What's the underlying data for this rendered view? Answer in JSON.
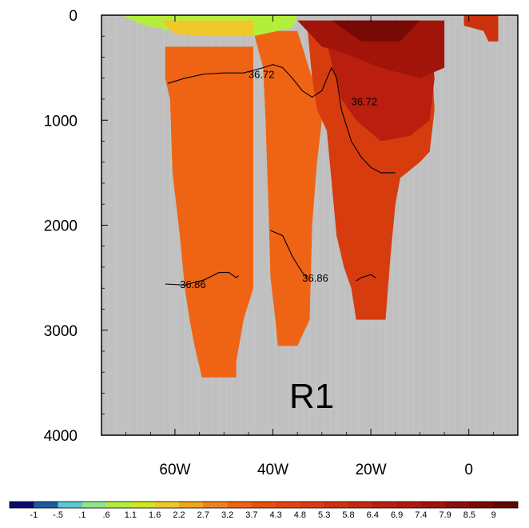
{
  "chart_data": {
    "type": "heatmap",
    "panel_label": "R1",
    "x_axis": {
      "range": [
        -75,
        10
      ],
      "ticks": [
        {
          "value": -60,
          "label": "60W"
        },
        {
          "value": -40,
          "label": "40W"
        },
        {
          "value": -20,
          "label": "20W"
        },
        {
          "value": 0,
          "label": "0"
        }
      ]
    },
    "y_axis": {
      "range": [
        0,
        4000
      ],
      "inverted": true,
      "ticks": [
        {
          "value": 0,
          "label": "0"
        },
        {
          "value": 1000,
          "label": "1000"
        },
        {
          "value": 2000,
          "label": "2000"
        },
        {
          "value": 3000,
          "label": "3000"
        },
        {
          "value": 4000,
          "label": "4000"
        }
      ]
    },
    "missing_color": "#c0c0c0",
    "colorbar": {
      "labels": [
        "-1",
        "-.5",
        ".1",
        ".6",
        "1.1",
        "1.6",
        "2.2",
        "2.7",
        "3.2",
        "3.7",
        "4.3",
        "4.8",
        "5.3",
        "5.8",
        "6.4",
        "6.9",
        "7.4",
        "7.9",
        "8.5",
        "9"
      ],
      "colors": [
        "#0a0a6e",
        "#1e5aa0",
        "#5ac8d2",
        "#8ce68c",
        "#b4ee3c",
        "#d2e61e",
        "#f0c828",
        "#f0a51e",
        "#f0821e",
        "#ee6414",
        "#e6500f",
        "#e1460f",
        "#d73c0f",
        "#cd320f",
        "#c3280f",
        "#b91e0f",
        "#af190d",
        "#a0140a",
        "#8c0f08",
        "#780a05",
        "#640505"
      ]
    },
    "filled_regions": [
      {
        "value": 3.5,
        "polygon": [
          [
            -62,
            0.3
          ],
          [
            -44,
            0.3
          ],
          [
            -44,
            2.6
          ],
          [
            -46,
            2.9
          ],
          [
            -47.5,
            3.3
          ],
          [
            -47.5,
            3.45
          ],
          [
            -54.5,
            3.45
          ],
          [
            -56,
            3.15
          ],
          [
            -57,
            2.9
          ],
          [
            -58,
            2.6
          ],
          [
            -59,
            2.1
          ],
          [
            -60.5,
            1.5
          ],
          [
            -61,
            0.8
          ],
          [
            -62,
            0.6
          ]
        ]
      },
      {
        "value": 3.6,
        "polygon": [
          [
            -44,
            0.15
          ],
          [
            -35,
            0.15
          ],
          [
            -32,
            0.6
          ],
          [
            -30,
            1.0
          ],
          [
            -31,
            1.4
          ],
          [
            -32,
            2.0
          ],
          [
            -32.5,
            2.9
          ],
          [
            -35,
            3.15
          ],
          [
            -39,
            3.15
          ],
          [
            -39.5,
            2.9
          ],
          [
            -40.5,
            2.5
          ],
          [
            -41,
            1.7
          ],
          [
            -41.5,
            1.0
          ],
          [
            -42,
            0.5
          ]
        ]
      },
      {
        "value": 4.8,
        "polygon": [
          [
            -33,
            0.1
          ],
          [
            -8,
            0.1
          ],
          [
            -7,
            0.9
          ],
          [
            -8,
            1.3
          ],
          [
            -10,
            1.4
          ],
          [
            -14,
            1.55
          ],
          [
            -15,
            1.8
          ],
          [
            -16,
            2.3
          ],
          [
            -17,
            2.9
          ],
          [
            -23,
            2.9
          ],
          [
            -24,
            2.6
          ],
          [
            -25.5,
            2.4
          ],
          [
            -27,
            2.1
          ],
          [
            -28,
            1.6
          ],
          [
            -29,
            1.1
          ],
          [
            -31,
            0.9
          ],
          [
            -32,
            0.6
          ]
        ]
      },
      {
        "value": 6.5,
        "polygon": [
          [
            -30,
            0.1
          ],
          [
            -8,
            0.1
          ],
          [
            -7,
            0.6
          ],
          [
            -8,
            1.0
          ],
          [
            -12,
            1.15
          ],
          [
            -18,
            1.2
          ],
          [
            -23,
            1.0
          ],
          [
            -26,
            0.8
          ]
        ]
      },
      {
        "value": 7.5,
        "polygon": [
          [
            -35,
            0.05
          ],
          [
            -5,
            0.05
          ],
          [
            -5,
            0.5
          ],
          [
            -10,
            0.6
          ],
          [
            -18,
            0.5
          ],
          [
            -26,
            0.35
          ],
          [
            -30,
            0.3
          ]
        ]
      },
      {
        "value": 8.5,
        "polygon": [
          [
            -28,
            0.05
          ],
          [
            -10,
            0.05
          ],
          [
            -14,
            0.25
          ],
          [
            -22,
            0.25
          ]
        ]
      },
      {
        "value": 5.5,
        "polygon": [
          [
            -1,
            0.0
          ],
          [
            6,
            0.0
          ],
          [
            6,
            0.25
          ],
          [
            4,
            0.25
          ],
          [
            3,
            0.15
          ],
          [
            -1,
            0.1
          ]
        ]
      },
      {
        "value": 0.6,
        "polygon": [
          [
            -71,
            0.0
          ],
          [
            -35,
            0.0
          ],
          [
            -36,
            0.12
          ],
          [
            -44,
            0.2
          ],
          [
            -52,
            0.18
          ],
          [
            -60,
            0.15
          ],
          [
            -66,
            0.1
          ]
        ]
      },
      {
        "value": 1.6,
        "polygon": [
          [
            -63,
            0.05
          ],
          [
            -44,
            0.05
          ],
          [
            -44,
            0.2
          ],
          [
            -52,
            0.2
          ],
          [
            -60,
            0.18
          ]
        ]
      }
    ],
    "contours": [
      {
        "level": "36.72",
        "points": [
          [
            -61.5,
            0.65
          ],
          [
            -58,
            0.6
          ],
          [
            -54,
            0.56
          ],
          [
            -50,
            0.55
          ],
          [
            -46,
            0.55
          ],
          [
            -42,
            0.5
          ],
          [
            -40,
            0.47
          ],
          [
            -38,
            0.5
          ],
          [
            -36,
            0.6
          ],
          [
            -34,
            0.72
          ],
          [
            -32,
            0.78
          ],
          [
            -30,
            0.72
          ],
          [
            -28.5,
            0.55
          ],
          [
            -28,
            0.5
          ],
          [
            -27,
            0.6
          ],
          [
            -26,
            0.9
          ],
          [
            -24,
            1.2
          ],
          [
            -22,
            1.35
          ],
          [
            -20,
            1.45
          ],
          [
            -18,
            1.5
          ],
          [
            -15,
            1.5
          ]
        ],
        "label_at": [
          -45,
          0.56
        ]
      },
      {
        "level": "36.72",
        "points": [],
        "label_at": [
          -24,
          0.82
        ]
      },
      {
        "level": "36.86",
        "points": [
          [
            -62,
            2.56
          ],
          [
            -58,
            2.57
          ],
          [
            -54,
            2.52
          ],
          [
            -51,
            2.45
          ],
          [
            -49,
            2.45
          ],
          [
            -47.5,
            2.5
          ],
          [
            -47,
            2.48
          ]
        ],
        "label_at": [
          -59,
          2.56
        ]
      },
      {
        "level": "36.86",
        "points": [
          [
            -40.5,
            2.05
          ],
          [
            -38,
            2.1
          ],
          [
            -36,
            2.3
          ],
          [
            -34,
            2.45
          ],
          [
            -33,
            2.5
          ]
        ],
        "label_at": [
          -34,
          2.5
        ]
      },
      {
        "level": "36.86",
        "points": [
          [
            -23,
            2.53
          ],
          [
            -22,
            2.5
          ],
          [
            -20,
            2.47
          ],
          [
            -19,
            2.5
          ]
        ],
        "label_at": null
      }
    ]
  }
}
